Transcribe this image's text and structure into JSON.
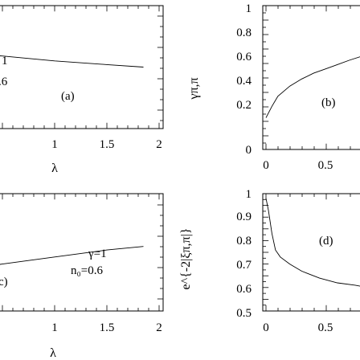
{
  "chart_data": [
    {
      "panel": "(a)",
      "type": "line",
      "xlabel": "λ",
      "ylabel": "",
      "xlim": [
        0,
        2
      ],
      "xticks": [
        "1",
        "1.5",
        "2"
      ],
      "annotations": [
        "1",
        ".6"
      ],
      "series": [
        {
          "x": [
            0.0,
            0.5,
            1.0,
            1.5,
            1.85
          ],
          "y": [
            0.62,
            0.59,
            0.55,
            0.52,
            0.5
          ]
        }
      ]
    },
    {
      "panel": "(b)",
      "type": "line",
      "xlabel": "",
      "ylabel": "γπ,π",
      "ylim": [
        0,
        1
      ],
      "yticks": [
        "0",
        "0.2",
        "0.4",
        "0.6",
        "0.8",
        "1"
      ],
      "xticks": [
        "0",
        "0.5"
      ],
      "series": [
        {
          "x": [
            0.0,
            0.05,
            0.1,
            0.2,
            0.3,
            0.4,
            0.5,
            0.6,
            0.7,
            0.85
          ],
          "y": [
            0.22,
            0.3,
            0.37,
            0.44,
            0.49,
            0.53,
            0.56,
            0.59,
            0.62,
            0.66
          ]
        }
      ]
    },
    {
      "panel": "(c)",
      "type": "line",
      "xlabel": "λ",
      "ylabel": "",
      "xlim": [
        0,
        2
      ],
      "xticks": [
        "1",
        "1.5",
        "2"
      ],
      "annotations": [
        "γ=1",
        "n₀=0.6",
        "c)"
      ],
      "series": [
        {
          "x": [
            0.0,
            0.5,
            1.0,
            1.5,
            1.85
          ],
          "y": [
            0.34,
            0.4,
            0.46,
            0.52,
            0.55
          ]
        }
      ]
    },
    {
      "panel": "(d)",
      "type": "line",
      "xlabel": "",
      "ylabel": "e^{-2|ξπ,π|}",
      "ylim": [
        0.5,
        1
      ],
      "yticks": [
        "0.5",
        "0.6",
        "0.7",
        "0.8",
        "0.9",
        "1"
      ],
      "xticks": [
        "0",
        "0.5"
      ],
      "series": [
        {
          "x": [
            0.0,
            0.02,
            0.05,
            0.08,
            0.12,
            0.2,
            0.3,
            0.45,
            0.6,
            0.75,
            0.85
          ],
          "y": [
            0.98,
            0.93,
            0.83,
            0.76,
            0.73,
            0.7,
            0.67,
            0.64,
            0.62,
            0.61,
            0.6
          ]
        }
      ]
    }
  ]
}
